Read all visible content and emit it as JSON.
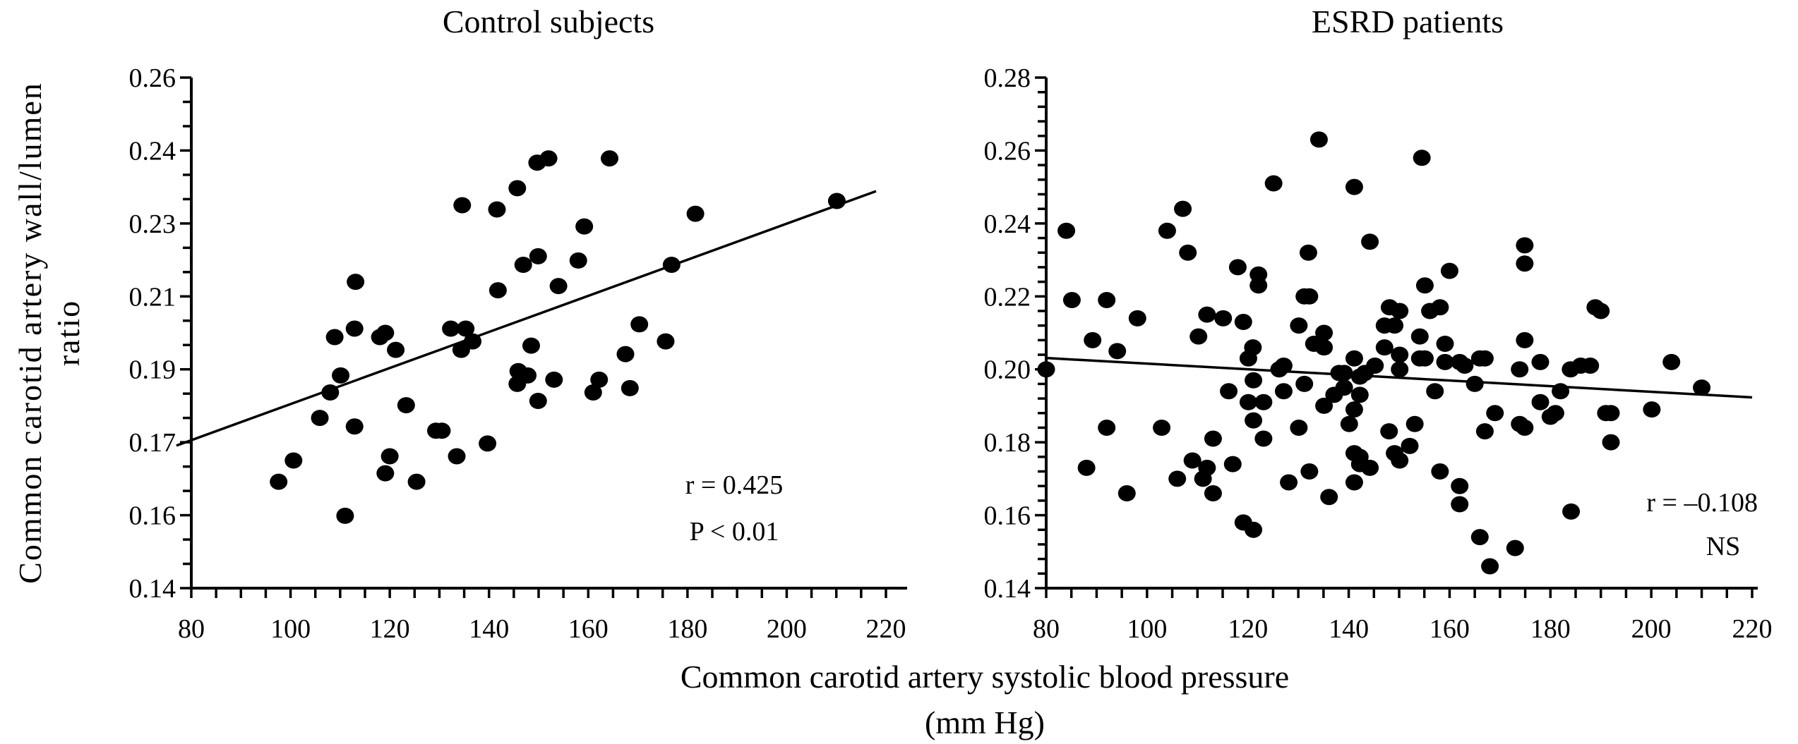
{
  "figure": {
    "xlabel_line1": "Common carotid artery systolic blood pressure",
    "xlabel_line2": "(mm Hg)",
    "ylabel_line1": "Common carotid artery wall/lumen",
    "ylabel_line2": "ratio"
  },
  "chart_data": [
    {
      "type": "scatter",
      "title": "Control subjects",
      "xlabel": "Common carotid artery systolic blood pressure (mm Hg)",
      "ylabel": "Common carotid artery wall/lumen ratio",
      "xlim": [
        80,
        220
      ],
      "ylim": [
        0.14,
        0.26
      ],
      "x_ticks": [
        80,
        100,
        120,
        140,
        160,
        180,
        200,
        220
      ],
      "x_tick_labels": [
        "80",
        "100",
        "120",
        "140",
        "160",
        "180",
        "200",
        "220"
      ],
      "x_minor_step": 5,
      "y_ticks": [
        0.14,
        0.15714,
        0.17429,
        0.19143,
        0.20857,
        0.22571,
        0.24286,
        0.26
      ],
      "y_tick_labels": [
        "0.14",
        "0.16",
        "0.17",
        "0.19",
        "0.21",
        "0.23",
        "0.24",
        "0.26"
      ],
      "y_minor_per_major": 2,
      "grid": false,
      "annotations": [
        "r = 0.425",
        "P < 0.01"
      ],
      "regression": {
        "x": [
          77,
          218
        ],
        "y": [
          0.1735,
          0.2333
        ]
      },
      "points": [
        [
          97.6,
          0.165
        ],
        [
          100.6,
          0.17
        ],
        [
          105.9,
          0.18
        ],
        [
          108,
          0.186
        ],
        [
          108.9,
          0.199
        ],
        [
          110.1,
          0.19
        ],
        [
          111,
          0.157
        ],
        [
          112.9,
          0.201
        ],
        [
          113.1,
          0.212
        ],
        [
          112.9,
          0.178
        ],
        [
          118,
          0.199
        ],
        [
          119.1,
          0.2
        ],
        [
          119.1,
          0.167
        ],
        [
          120,
          0.171
        ],
        [
          121.2,
          0.196
        ],
        [
          123.3,
          0.183
        ],
        [
          125.4,
          0.165
        ],
        [
          129.3,
          0.177
        ],
        [
          130.5,
          0.177
        ],
        [
          132.3,
          0.201
        ],
        [
          133.5,
          0.171
        ],
        [
          134.4,
          0.196
        ],
        [
          134.6,
          0.23
        ],
        [
          135.3,
          0.201
        ],
        [
          136.7,
          0.198
        ],
        [
          139.7,
          0.174
        ],
        [
          141.6,
          0.229
        ],
        [
          141.8,
          0.21
        ],
        [
          145.7,
          0.234
        ],
        [
          145.7,
          0.188
        ],
        [
          145.9,
          0.191
        ],
        [
          146.9,
          0.216
        ],
        [
          147.8,
          0.19
        ],
        [
          148.5,
          0.197
        ],
        [
          149.7,
          0.24
        ],
        [
          149.9,
          0.218
        ],
        [
          149.9,
          0.184
        ],
        [
          152,
          0.241
        ],
        [
          153.1,
          0.189
        ],
        [
          154,
          0.211
        ],
        [
          158,
          0.217
        ],
        [
          159.2,
          0.225
        ],
        [
          161,
          0.186
        ],
        [
          162.2,
          0.189
        ],
        [
          164.3,
          0.241
        ],
        [
          167.5,
          0.195
        ],
        [
          168.4,
          0.187
        ],
        [
          170.3,
          0.202
        ],
        [
          175.6,
          0.198
        ],
        [
          176.8,
          0.216
        ],
        [
          181.6,
          0.228
        ],
        [
          210.1,
          0.231
        ]
      ]
    },
    {
      "type": "scatter",
      "title": "ESRD patients",
      "xlabel": "Common carotid artery systolic blood pressure (mm Hg)",
      "ylabel": "Common carotid artery wall/lumen ratio",
      "xlim": [
        80,
        220
      ],
      "ylim": [
        0.14,
        0.28
      ],
      "x_ticks": [
        80,
        100,
        120,
        140,
        160,
        180,
        200,
        220
      ],
      "x_tick_labels": [
        "80",
        "100",
        "120",
        "140",
        "160",
        "180",
        "200",
        "220"
      ],
      "x_minor_step": 5,
      "y_ticks": [
        0.14,
        0.16,
        0.18,
        0.2,
        0.22,
        0.24,
        0.26,
        0.28
      ],
      "y_tick_labels": [
        "0.14",
        "0.16",
        "0.18",
        "0.20",
        "0.22",
        "0.24",
        "0.26",
        "0.28"
      ],
      "y_minor_per_major": 4,
      "grid": false,
      "annotations": [
        "r = –0.108",
        "NS"
      ],
      "regression": {
        "x": [
          80,
          220
        ],
        "y": [
          0.2031,
          0.1923
        ]
      },
      "points": [
        [
          80,
          0.2
        ],
        [
          84,
          0.238
        ],
        [
          85.1,
          0.219
        ],
        [
          88,
          0.173
        ],
        [
          89.2,
          0.208
        ],
        [
          92,
          0.219
        ],
        [
          92,
          0.184
        ],
        [
          94.1,
          0.205
        ],
        [
          96,
          0.166
        ],
        [
          98.1,
          0.214
        ],
        [
          102.9,
          0.184
        ],
        [
          104,
          0.238
        ],
        [
          106,
          0.17
        ],
        [
          107.1,
          0.244
        ],
        [
          108.1,
          0.232
        ],
        [
          109,
          0.175
        ],
        [
          110.2,
          0.209
        ],
        [
          111.1,
          0.17
        ],
        [
          111.9,
          0.215
        ],
        [
          111.9,
          0.173
        ],
        [
          113.1,
          0.181
        ],
        [
          113.1,
          0.166
        ],
        [
          115.1,
          0.214
        ],
        [
          116.2,
          0.194
        ],
        [
          117,
          0.174
        ],
        [
          118,
          0.228
        ],
        [
          119.1,
          0.213
        ],
        [
          119.1,
          0.158
        ],
        [
          120.1,
          0.203
        ],
        [
          120.1,
          0.191
        ],
        [
          121,
          0.206
        ],
        [
          121.1,
          0.197
        ],
        [
          121.1,
          0.186
        ],
        [
          121.1,
          0.156
        ],
        [
          122.1,
          0.226
        ],
        [
          122.1,
          0.223
        ],
        [
          123.1,
          0.191
        ],
        [
          123.1,
          0.181
        ],
        [
          125.1,
          0.251
        ],
        [
          126.2,
          0.2
        ],
        [
          127.1,
          0.201
        ],
        [
          127.1,
          0.194
        ],
        [
          128.1,
          0.169
        ],
        [
          130.1,
          0.184
        ],
        [
          130.1,
          0.212
        ],
        [
          131.2,
          0.196
        ],
        [
          131.2,
          0.22
        ],
        [
          132.2,
          0.22
        ],
        [
          132.0,
          0.232
        ],
        [
          132.2,
          0.172
        ],
        [
          133.1,
          0.207
        ],
        [
          134.1,
          0.263
        ],
        [
          135.1,
          0.21
        ],
        [
          135.1,
          0.206
        ],
        [
          135.1,
          0.19
        ],
        [
          136.1,
          0.165
        ],
        [
          137.1,
          0.193
        ],
        [
          138.1,
          0.199
        ],
        [
          139.1,
          0.199
        ],
        [
          139.1,
          0.195
        ],
        [
          140.1,
          0.185
        ],
        [
          141.1,
          0.25
        ],
        [
          141.1,
          0.203
        ],
        [
          141.1,
          0.189
        ],
        [
          141.1,
          0.177
        ],
        [
          141.1,
          0.169
        ],
        [
          142.2,
          0.193
        ],
        [
          142.2,
          0.198
        ],
        [
          142.2,
          0.176
        ],
        [
          142.2,
          0.174
        ],
        [
          143.2,
          0.199
        ],
        [
          144.2,
          0.235
        ],
        [
          144.2,
          0.173
        ],
        [
          145.2,
          0.201
        ],
        [
          147.1,
          0.206
        ],
        [
          147.1,
          0.212
        ],
        [
          148.0,
          0.183
        ],
        [
          148.1,
          0.217
        ],
        [
          149.1,
          0.212
        ],
        [
          149.1,
          0.177
        ],
        [
          150.1,
          0.204
        ],
        [
          150.1,
          0.2
        ],
        [
          150.1,
          0.216
        ],
        [
          150.1,
          0.175
        ],
        [
          152.1,
          0.179
        ],
        [
          153.1,
          0.185
        ],
        [
          154.1,
          0.209
        ],
        [
          154.1,
          0.203
        ],
        [
          154.5,
          0.258
        ],
        [
          155.1,
          0.223
        ],
        [
          155.1,
          0.203
        ],
        [
          156.1,
          0.216
        ],
        [
          157.1,
          0.194
        ],
        [
          158.1,
          0.217
        ],
        [
          158.1,
          0.172
        ],
        [
          159.1,
          0.207
        ],
        [
          159.1,
          0.202
        ],
        [
          160.0,
          0.227
        ],
        [
          162.0,
          0.202
        ],
        [
          162.0,
          0.168
        ],
        [
          162.0,
          0.163
        ],
        [
          163.0,
          0.201
        ],
        [
          165.0,
          0.196
        ],
        [
          166.0,
          0.203
        ],
        [
          166.0,
          0.154
        ],
        [
          167.0,
          0.203
        ],
        [
          167.0,
          0.183
        ],
        [
          168.0,
          0.146
        ],
        [
          169.0,
          0.188
        ],
        [
          173.0,
          0.151
        ],
        [
          173.9,
          0.2
        ],
        [
          173.9,
          0.185
        ],
        [
          174.9,
          0.234
        ],
        [
          174.9,
          0.229
        ],
        [
          174.9,
          0.208
        ],
        [
          174.9,
          0.184
        ],
        [
          178.0,
          0.202
        ],
        [
          178.0,
          0.191
        ],
        [
          180.0,
          0.187
        ],
        [
          181.0,
          0.188
        ],
        [
          182.0,
          0.194
        ],
        [
          184.0,
          0.2
        ],
        [
          184.1,
          0.161
        ],
        [
          186.0,
          0.201
        ],
        [
          187.9,
          0.201
        ],
        [
          188.9,
          0.217
        ],
        [
          190.0,
          0.216
        ],
        [
          191.0,
          0.188
        ],
        [
          192.0,
          0.188
        ],
        [
          192.0,
          0.18
        ],
        [
          200.1,
          0.189
        ],
        [
          204.0,
          0.202
        ],
        [
          210.0,
          0.195
        ]
      ]
    }
  ]
}
